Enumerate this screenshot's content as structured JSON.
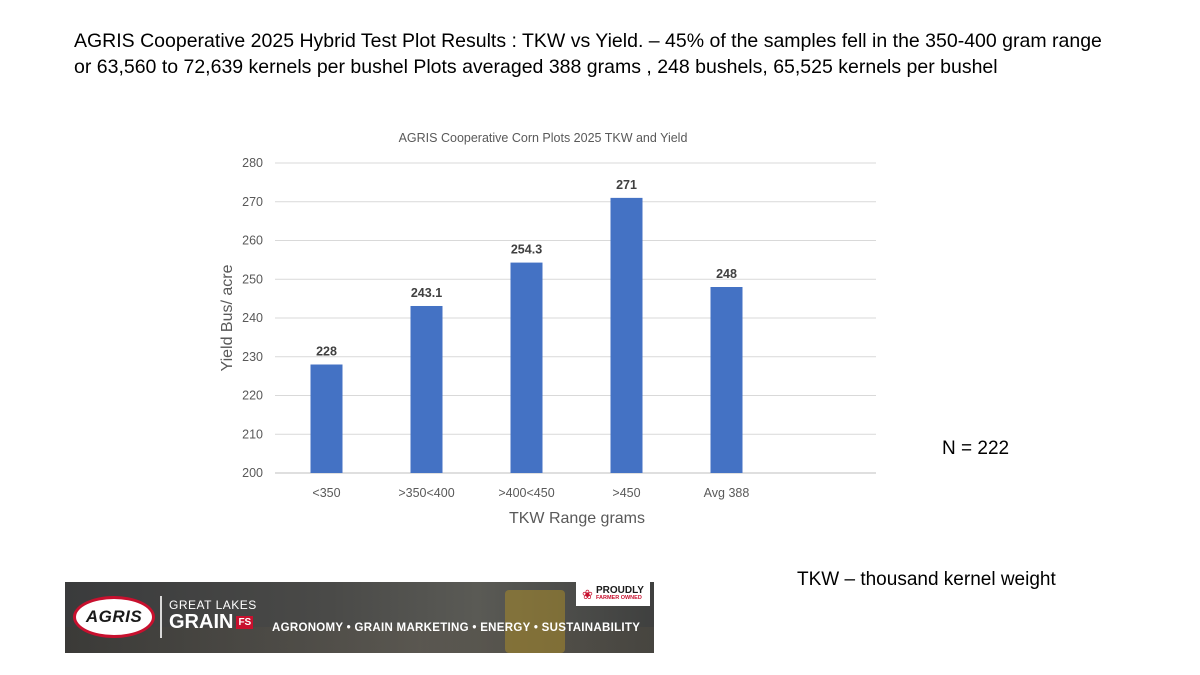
{
  "headline": {
    "line1": "AGRIS Cooperative 2025 Hybrid Test Plot Results : TKW vs Yield. – 45% of the samples fell in the 350-400 gram range",
    "line2": "or 63,560 to 72,639 kernels per bushel  Plots averaged 388 grams , 248 bushels,  65,525 kernels per bushel"
  },
  "chart_data": {
    "type": "bar",
    "title": "AGRIS Cooperative Corn Plots 2025 TKW and Yield",
    "xlabel": "TKW Range grams",
    "ylabel": "Yield Bus/ acre",
    "categories": [
      "<350",
      ">350<400",
      ">400<450",
      ">450",
      "Avg 388"
    ],
    "values": [
      228,
      243.1,
      254.3,
      271,
      248
    ],
    "data_labels": [
      "228",
      "243.1",
      "254.3",
      "271",
      "248"
    ],
    "ylim": [
      200,
      280
    ],
    "yticks": [
      200,
      210,
      220,
      230,
      240,
      250,
      260,
      270,
      280
    ],
    "grid": true,
    "bar_color": "#4472C4"
  },
  "notes": {
    "n_count": "N = 222",
    "tkw_definition": "TKW – thousand kernel weight"
  },
  "banner": {
    "logo_text": "AGRIS",
    "brand_top": "GREAT LAKES",
    "brand_main": "GRAIN",
    "brand_suffix": "FS",
    "tagline": "AGRONOMY  •  GRAIN MARKETING  •  ENERGY  •  SUSTAINABILITY",
    "badge_main": "PROUDLY",
    "badge_sub": "FARMER OWNED",
    "badge_icon": "maple-leaf-icon"
  }
}
